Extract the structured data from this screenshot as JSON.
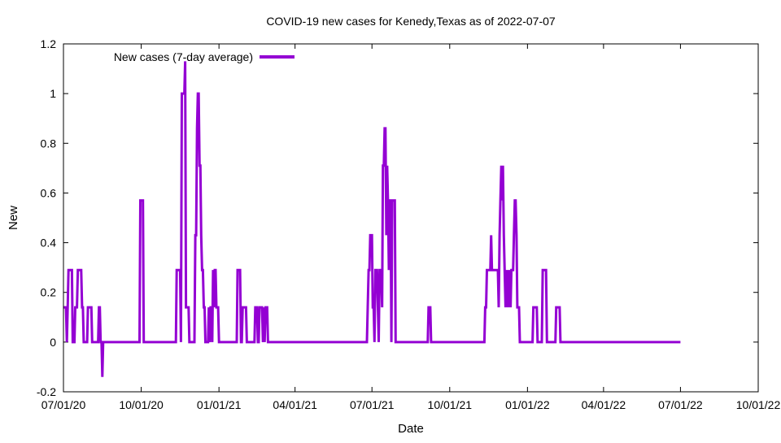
{
  "chart_data": {
    "type": "line",
    "title": "COVID-19 new cases for Kenedy,Texas as of 2022-07-07",
    "xlabel": "Date",
    "ylabel": "New",
    "x_range": [
      "2020-07-01",
      "2022-10-01"
    ],
    "ylim": [
      -0.2,
      1.2
    ],
    "x_ticks": [
      {
        "date": "2020-07-01",
        "label": "07/01/20"
      },
      {
        "date": "2020-10-01",
        "label": "10/01/20"
      },
      {
        "date": "2021-01-01",
        "label": "01/01/21"
      },
      {
        "date": "2021-04-01",
        "label": "04/01/21"
      },
      {
        "date": "2021-07-01",
        "label": "07/01/21"
      },
      {
        "date": "2021-10-01",
        "label": "10/01/21"
      },
      {
        "date": "2022-01-01",
        "label": "01/01/22"
      },
      {
        "date": "2022-04-01",
        "label": "04/01/22"
      },
      {
        "date": "2022-07-01",
        "label": "07/01/22"
      },
      {
        "date": "2022-10-01",
        "label": "10/01/22"
      }
    ],
    "y_ticks": [
      {
        "value": -0.2,
        "label": "-0.2"
      },
      {
        "value": 0,
        "label": "0"
      },
      {
        "value": 0.2,
        "label": "0.2"
      },
      {
        "value": 0.4,
        "label": "0.4"
      },
      {
        "value": 0.6,
        "label": "0.6"
      },
      {
        "value": 0.8,
        "label": "0.8"
      },
      {
        "value": 1,
        "label": "1"
      },
      {
        "value": 1.2,
        "label": "1.2"
      }
    ],
    "grid": false,
    "legend_position": "top-left",
    "series": [
      {
        "name": "New cases (7-day average)",
        "color": "#9400d3",
        "points": [
          [
            "2020-07-01",
            0.14
          ],
          [
            "2020-07-04",
            0.14
          ],
          [
            "2020-07-05",
            0
          ],
          [
            "2020-07-06",
            0.14
          ],
          [
            "2020-07-07",
            0.29
          ],
          [
            "2020-07-11",
            0.29
          ],
          [
            "2020-07-12",
            0
          ],
          [
            "2020-07-14",
            0
          ],
          [
            "2020-07-15",
            0.14
          ],
          [
            "2020-07-17",
            0.14
          ],
          [
            "2020-07-18",
            0.29
          ],
          [
            "2020-07-22",
            0.29
          ],
          [
            "2020-07-23",
            0.14
          ],
          [
            "2020-07-24",
            0.14
          ],
          [
            "2020-07-25",
            0
          ],
          [
            "2020-07-29",
            0
          ],
          [
            "2020-07-30",
            0.14
          ],
          [
            "2020-08-03",
            0.14
          ],
          [
            "2020-08-04",
            0
          ],
          [
            "2020-08-11",
            0
          ],
          [
            "2020-08-12",
            0.14
          ],
          [
            "2020-08-13",
            0.14
          ],
          [
            "2020-08-14",
            0
          ],
          [
            "2020-08-15",
            0
          ],
          [
            "2020-08-16",
            -0.14
          ],
          [
            "2020-08-17",
            0
          ],
          [
            "2020-09-29",
            0
          ],
          [
            "2020-09-30",
            0.57
          ],
          [
            "2020-10-03",
            0.57
          ],
          [
            "2020-10-04",
            0
          ],
          [
            "2020-11-11",
            0
          ],
          [
            "2020-11-12",
            0.29
          ],
          [
            "2020-11-16",
            0.29
          ],
          [
            "2020-11-17",
            0
          ],
          [
            "2020-11-18",
            1
          ],
          [
            "2020-11-21",
            1
          ],
          [
            "2020-11-22",
            1.13
          ],
          [
            "2020-11-23",
            0.14
          ],
          [
            "2020-11-26",
            0.14
          ],
          [
            "2020-11-27",
            0
          ],
          [
            "2020-12-03",
            0
          ],
          [
            "2020-12-04",
            0.43
          ],
          [
            "2020-12-05",
            0.43
          ],
          [
            "2020-12-06",
            0.86
          ],
          [
            "2020-12-07",
            1
          ],
          [
            "2020-12-08",
            1
          ],
          [
            "2020-12-09",
            0.71
          ],
          [
            "2020-12-10",
            0.71
          ],
          [
            "2020-12-11",
            0.43
          ],
          [
            "2020-12-12",
            0.29
          ],
          [
            "2020-12-13",
            0.29
          ],
          [
            "2020-12-14",
            0.14
          ],
          [
            "2020-12-15",
            0.14
          ],
          [
            "2020-12-16",
            0
          ],
          [
            "2020-12-19",
            0
          ],
          [
            "2020-12-20",
            0.14
          ],
          [
            "2020-12-21",
            0
          ],
          [
            "2020-12-22",
            0.14
          ],
          [
            "2020-12-23",
            0.14
          ],
          [
            "2020-12-24",
            0
          ],
          [
            "2020-12-25",
            0.29
          ],
          [
            "2020-12-26",
            0.14
          ],
          [
            "2020-12-27",
            0.29
          ],
          [
            "2020-12-28",
            0.29
          ],
          [
            "2020-12-29",
            0.14
          ],
          [
            "2020-12-31",
            0.14
          ],
          [
            "2021-01-01",
            0
          ],
          [
            "2021-01-22",
            0
          ],
          [
            "2021-01-23",
            0.29
          ],
          [
            "2021-01-26",
            0.29
          ],
          [
            "2021-01-27",
            0
          ],
          [
            "2021-01-28",
            0
          ],
          [
            "2021-01-29",
            0.14
          ],
          [
            "2021-02-02",
            0.14
          ],
          [
            "2021-02-03",
            0
          ],
          [
            "2021-02-12",
            0
          ],
          [
            "2021-02-13",
            0.14
          ],
          [
            "2021-02-15",
            0.14
          ],
          [
            "2021-02-16",
            0
          ],
          [
            "2021-02-17",
            0
          ],
          [
            "2021-02-18",
            0.14
          ],
          [
            "2021-02-21",
            0.14
          ],
          [
            "2021-02-22",
            0
          ],
          [
            "2021-02-23",
            0.14
          ],
          [
            "2021-02-24",
            0
          ],
          [
            "2021-02-25",
            0.14
          ],
          [
            "2021-02-27",
            0.14
          ],
          [
            "2021-02-28",
            0
          ],
          [
            "2021-06-25",
            0
          ],
          [
            "2021-06-26",
            0.14
          ],
          [
            "2021-06-27",
            0.29
          ],
          [
            "2021-06-28",
            0.29
          ],
          [
            "2021-06-29",
            0.43
          ],
          [
            "2021-07-01",
            0.43
          ],
          [
            "2021-07-02",
            0.14
          ],
          [
            "2021-07-03",
            0.14
          ],
          [
            "2021-07-04",
            0
          ],
          [
            "2021-07-05",
            0.29
          ],
          [
            "2021-07-07",
            0.29
          ],
          [
            "2021-07-08",
            0.14
          ],
          [
            "2021-07-09",
            0
          ],
          [
            "2021-07-10",
            0.29
          ],
          [
            "2021-07-12",
            0.29
          ],
          [
            "2021-07-13",
            0.14
          ],
          [
            "2021-07-14",
            0.71
          ],
          [
            "2021-07-15",
            0.71
          ],
          [
            "2021-07-16",
            0.86
          ],
          [
            "2021-07-17",
            0.86
          ],
          [
            "2021-07-18",
            0.43
          ],
          [
            "2021-07-19",
            0.71
          ],
          [
            "2021-07-20",
            0.57
          ],
          [
            "2021-07-21",
            0.29
          ],
          [
            "2021-07-22",
            0.57
          ],
          [
            "2021-07-23",
            0.57
          ],
          [
            "2021-07-24",
            0
          ],
          [
            "2021-07-25",
            0.57
          ],
          [
            "2021-07-28",
            0.57
          ],
          [
            "2021-07-29",
            0
          ],
          [
            "2021-09-05",
            0
          ],
          [
            "2021-09-06",
            0.14
          ],
          [
            "2021-09-08",
            0.14
          ],
          [
            "2021-09-09",
            0
          ],
          [
            "2021-11-11",
            0
          ],
          [
            "2021-11-12",
            0.14
          ],
          [
            "2021-11-13",
            0.14
          ],
          [
            "2021-11-14",
            0.29
          ],
          [
            "2021-11-18",
            0.29
          ],
          [
            "2021-11-19",
            0.43
          ],
          [
            "2021-11-20",
            0.29
          ],
          [
            "2021-11-27",
            0.29
          ],
          [
            "2021-11-28",
            0.14
          ],
          [
            "2021-11-29",
            0.43
          ],
          [
            "2021-11-30",
            0.57
          ],
          [
            "2021-12-01",
            0.71
          ],
          [
            "2021-12-02",
            0.57
          ],
          [
            "2021-12-03",
            0.71
          ],
          [
            "2021-12-04",
            0.43
          ],
          [
            "2021-12-05",
            0.29
          ],
          [
            "2021-12-06",
            0.14
          ],
          [
            "2021-12-07",
            0.29
          ],
          [
            "2021-12-08",
            0.14
          ],
          [
            "2021-12-09",
            0.29
          ],
          [
            "2021-12-10",
            0.14
          ],
          [
            "2021-12-11",
            0.29
          ],
          [
            "2021-12-12",
            0.14
          ],
          [
            "2021-12-13",
            0.29
          ],
          [
            "2021-12-15",
            0.29
          ],
          [
            "2021-12-16",
            0.43
          ],
          [
            "2021-12-17",
            0.57
          ],
          [
            "2021-12-18",
            0.57
          ],
          [
            "2021-12-19",
            0.43
          ],
          [
            "2021-12-20",
            0.14
          ],
          [
            "2021-12-22",
            0.14
          ],
          [
            "2021-12-23",
            0
          ],
          [
            "2022-01-07",
            0
          ],
          [
            "2022-01-08",
            0.14
          ],
          [
            "2022-01-12",
            0.14
          ],
          [
            "2022-01-13",
            0
          ],
          [
            "2022-01-18",
            0
          ],
          [
            "2022-01-19",
            0.29
          ],
          [
            "2022-01-23",
            0.29
          ],
          [
            "2022-01-24",
            0
          ],
          [
            "2022-02-03",
            0
          ],
          [
            "2022-02-04",
            0.14
          ],
          [
            "2022-02-08",
            0.14
          ],
          [
            "2022-02-09",
            0
          ],
          [
            "2022-07-01",
            0
          ]
        ]
      }
    ]
  }
}
